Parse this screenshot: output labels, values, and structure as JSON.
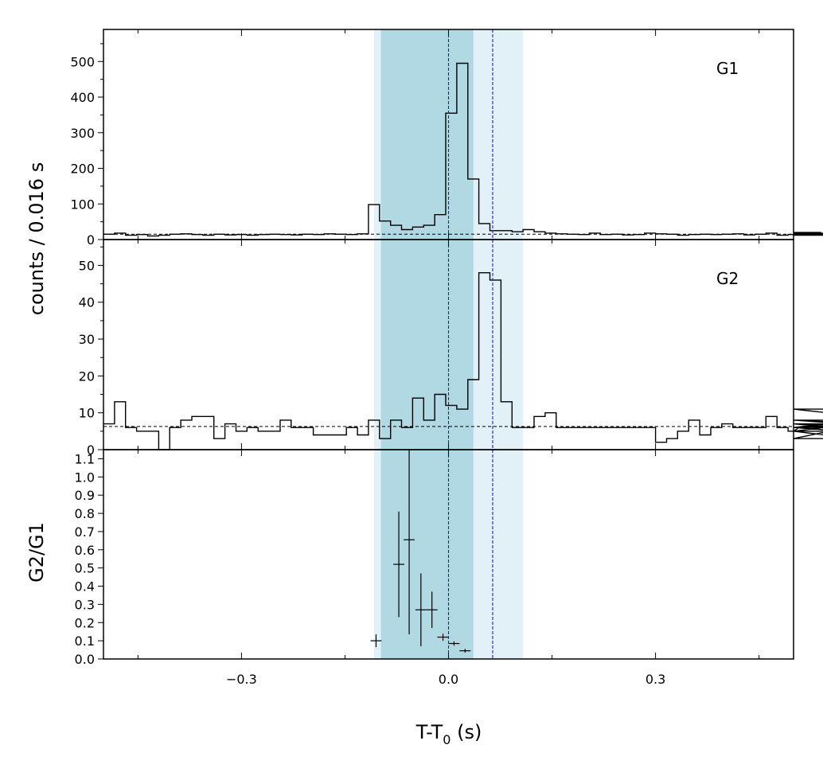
{
  "chart_data": {
    "type": "step",
    "xlabel_main": "T-T",
    "xlabel_sub": "0",
    "xlabel_unit": " (s)",
    "ylabel_top": "counts /  0.016 s",
    "ylabel_bottom": "G2/G1",
    "xlim": [
      -0.5,
      0.5
    ],
    "x_ticks": [
      -0.3,
      0.0,
      0.3
    ],
    "x_tick_labels": [
      "−0.3",
      "0.0",
      "0.3"
    ],
    "colors": {
      "shade_dark": "#9fd0de",
      "shade_light": "#cfe8f1",
      "vline": "#1f1fcc",
      "line": "#000000"
    },
    "shaded_regions": [
      {
        "x0": -0.108,
        "x1": 0.108,
        "style": "light"
      },
      {
        "x0": -0.098,
        "x1": 0.036,
        "style": "dark"
      }
    ],
    "vlines": [
      0.0,
      0.064
    ],
    "panels": [
      {
        "label": "G1",
        "ylim": [
          0,
          590
        ],
        "y_ticks": [
          0,
          100,
          200,
          300,
          400,
          500
        ],
        "y_tick_labels": [
          "0",
          "100",
          "200",
          "300",
          "400",
          "500"
        ],
        "background": 15,
        "bin_width": 0.016,
        "bins_start": -0.5,
        "counts": [
          15,
          18,
          12,
          14,
          10,
          12,
          15,
          16,
          14,
          12,
          15,
          13,
          14,
          12,
          14,
          15,
          14,
          13,
          15,
          14,
          16,
          15,
          14,
          16,
          98,
          52,
          40,
          28,
          35,
          40,
          70,
          355,
          495,
          170,
          45,
          25,
          25,
          22,
          28,
          22,
          18,
          16,
          15,
          14,
          18,
          14,
          15,
          13,
          14,
          18,
          16,
          15,
          12,
          14,
          15,
          14,
          15,
          16,
          13,
          15,
          18,
          12,
          14,
          15,
          18,
          20,
          17,
          12,
          14,
          16,
          15,
          14
        ]
      },
      {
        "label": "G2",
        "ylim": [
          0,
          57
        ],
        "y_ticks": [
          0,
          10,
          20,
          30,
          40,
          50
        ],
        "y_tick_labels": [
          "0",
          "10",
          "20",
          "30",
          "40",
          "50"
        ],
        "background": 6.3,
        "bin_width": 0.016,
        "bins_start": -0.5,
        "counts": [
          7,
          13,
          6,
          5,
          5,
          0,
          6,
          8,
          9,
          9,
          3,
          7,
          5,
          6,
          5,
          5,
          8,
          6,
          6,
          4,
          4,
          4,
          6,
          4,
          8,
          3,
          8,
          6,
          14,
          8,
          15,
          12,
          11,
          19,
          48,
          46,
          13,
          6,
          6,
          9,
          10,
          6,
          6,
          6,
          6,
          6,
          6,
          6,
          6,
          6,
          2,
          3,
          5,
          8,
          4,
          6,
          7,
          6,
          6,
          6,
          9,
          6,
          5,
          6,
          6,
          6,
          6,
          5,
          3,
          7,
          5,
          8,
          6,
          7,
          6,
          8,
          6,
          11,
          6
        ]
      }
    ],
    "ratio_panel": {
      "ylim": [
        0,
        1.15
      ],
      "y_ticks": [
        0.0,
        0.1,
        0.2,
        0.3,
        0.4,
        0.5,
        0.6,
        0.7,
        0.8,
        0.9,
        1.0,
        1.1
      ],
      "y_tick_labels": [
        "0.0",
        "0.1",
        "0.2",
        "0.3",
        "0.4",
        "0.5",
        "0.6",
        "0.7",
        "0.8",
        "0.9",
        "1.0",
        "1.1"
      ],
      "points": [
        {
          "x": -0.105,
          "y": 0.1,
          "xerr": 0.008,
          "yerr": 0.035
        },
        {
          "x": -0.072,
          "y": 0.52,
          "xerr": 0.008,
          "yerr": 0.29
        },
        {
          "x": -0.057,
          "y": 0.655,
          "xerr": 0.008,
          "yerr": 0.52
        },
        {
          "x": -0.04,
          "y": 0.27,
          "xerr": 0.008,
          "yerr": 0.2
        },
        {
          "x": -0.024,
          "y": 0.27,
          "xerr": 0.008,
          "yerr": 0.1
        },
        {
          "x": -0.008,
          "y": 0.12,
          "xerr": 0.008,
          "yerr": 0.02
        },
        {
          "x": 0.008,
          "y": 0.085,
          "xerr": 0.008,
          "yerr": 0.012
        },
        {
          "x": 0.024,
          "y": 0.045,
          "xerr": 0.008,
          "yerr": 0.01
        }
      ]
    }
  }
}
